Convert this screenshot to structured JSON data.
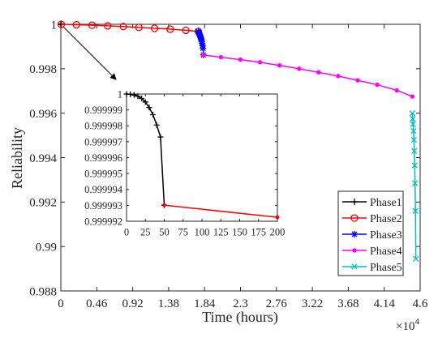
{
  "chart_data": [
    {
      "type": "line",
      "xlabel": "Time (hours)",
      "ylabel": "Reliability",
      "x_multiplier_label": "×10",
      "x_multiplier_exponent": "4",
      "xlim": [
        0,
        4.6
      ],
      "ylim": [
        0.988,
        1.0
      ],
      "x_ticks": [
        0,
        0.46,
        0.92,
        1.38,
        1.84,
        2.3,
        2.76,
        3.22,
        3.68,
        4.14,
        4.6
      ],
      "x_tick_labels": [
        "0",
        "0.46",
        "0.92",
        "1.38",
        "1.84",
        "2.3",
        "2.76",
        "3.22",
        "3.68",
        "4.14",
        "4.6"
      ],
      "y_ticks": [
        0.988,
        0.99,
        0.992,
        0.994,
        0.996,
        0.998,
        1.0
      ],
      "y_tick_labels": [
        "0.988",
        "0.99",
        "0.992",
        "0.994",
        "0.996",
        "0.998",
        "1"
      ],
      "grid": false,
      "legend_position": "bottom-right",
      "series": [
        {
          "name": "Phase1",
          "color": "#000000",
          "marker": "plus",
          "x": [
            0.0,
            0.001,
            0.002,
            0.003,
            0.004,
            0.005
          ],
          "y": [
            1.0,
            0.99999999,
            0.99999998,
            0.99999997,
            0.99999996,
            0.99999993
          ]
        },
        {
          "name": "Phase2",
          "color": "#ff0000",
          "marker": "circle",
          "x": [
            0.005,
            0.2,
            0.4,
            0.6,
            0.8,
            1.0,
            1.2,
            1.4,
            1.6,
            1.76
          ],
          "y": [
            0.99999993,
            0.99998,
            0.99996,
            0.99993,
            0.9999,
            0.99986,
            0.99982,
            0.99978,
            0.99973,
            0.99968
          ]
        },
        {
          "name": "Phase3",
          "color": "#0000ff",
          "marker": "star",
          "x": [
            1.76,
            1.765,
            1.77,
            1.775,
            1.78,
            1.785,
            1.79,
            1.795,
            1.8,
            1.805,
            1.81,
            1.815,
            1.82,
            1.825
          ],
          "y": [
            0.99968,
            0.99964,
            0.9996,
            0.99955,
            0.99951,
            0.99946,
            0.99941,
            0.99935,
            0.99929,
            0.99922,
            0.99914,
            0.99904,
            0.99892,
            0.99862
          ]
        },
        {
          "name": "Phase4",
          "color": "#ff00ff",
          "marker": "dot",
          "x": [
            1.825,
            2.05,
            2.3,
            2.55,
            2.8,
            3.05,
            3.3,
            3.55,
            3.8,
            4.05,
            4.3,
            4.5
          ],
          "y": [
            0.99862,
            0.99852,
            0.99841,
            0.99829,
            0.99815,
            0.998,
            0.99784,
            0.99767,
            0.99748,
            0.99728,
            0.99703,
            0.99675
          ]
        },
        {
          "name": "Phase5",
          "color": "#00bfbf",
          "marker": "x",
          "x": [
            4.5,
            4.505,
            4.51,
            4.515,
            4.52,
            4.525,
            4.53,
            4.535,
            4.54,
            4.545
          ],
          "y": [
            0.996,
            0.99575,
            0.9955,
            0.9952,
            0.9948,
            0.9943,
            0.99365,
            0.99285,
            0.9916,
            0.98945
          ]
        }
      ]
    },
    {
      "type": "line",
      "role": "inset",
      "xlim": [
        0,
        200
      ],
      "ylim": [
        0.999992,
        1.0
      ],
      "x_ticks": [
        0,
        25,
        50,
        75,
        100,
        125,
        150,
        175,
        200
      ],
      "x_tick_labels": [
        "0",
        "25",
        "50",
        "75",
        "100",
        "125",
        "150",
        "175",
        "200"
      ],
      "y_ticks": [
        0.999992,
        0.999993,
        0.999994,
        0.999995,
        0.999996,
        0.999997,
        0.999998,
        0.999999,
        1.0
      ],
      "y_tick_labels": [
        "0.999992",
        "0.999993",
        "0.999994",
        "0.999995",
        "0.999996",
        "0.999997",
        "0.999998",
        "0.999999",
        "1"
      ],
      "series": [
        {
          "name": "Phase1",
          "color": "#000000",
          "marker": "plus",
          "x": [
            0,
            5,
            10,
            15,
            20,
            25,
            30,
            35,
            40,
            45,
            50
          ],
          "y": [
            1.0,
            0.99999998,
            0.99999994,
            0.99999986,
            0.99999972,
            0.9999995,
            0.99999915,
            0.9999987,
            0.99999805,
            0.9999973,
            0.99999301
          ]
        },
        {
          "name": "Phase2",
          "color": "#ff0000",
          "marker": "dot",
          "x": [
            50,
            200
          ],
          "y": [
            0.99999301,
            0.99999225
          ]
        }
      ]
    }
  ]
}
